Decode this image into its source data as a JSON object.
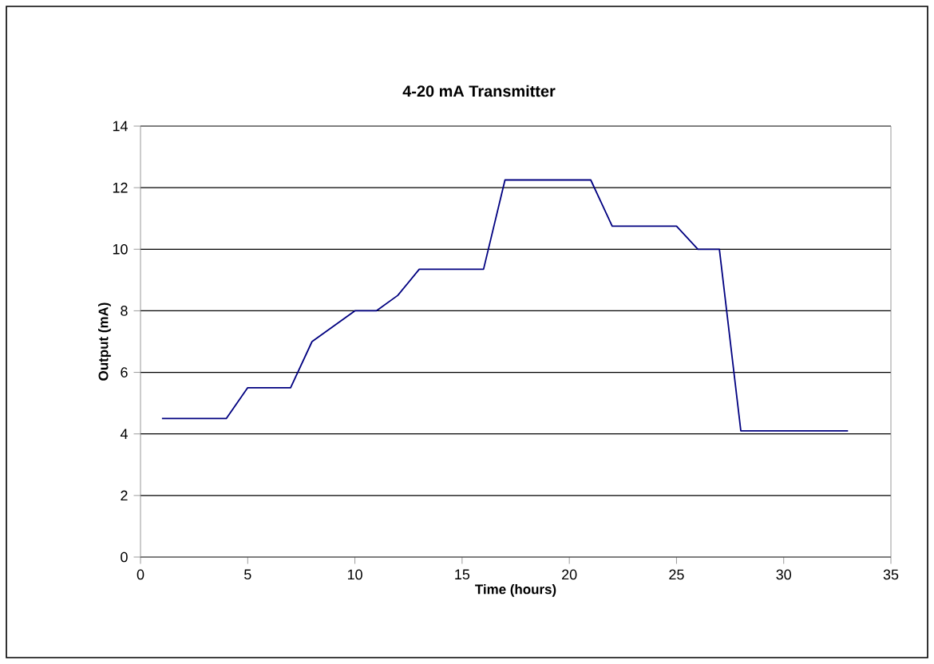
{
  "chart_data": {
    "type": "line",
    "title": "4-20 mA Transmitter",
    "xlabel": "Time (hours)",
    "ylabel": "Output (mA)",
    "x": [
      1,
      4,
      5,
      7,
      8,
      10,
      11,
      12,
      13,
      16,
      17,
      21,
      22,
      25,
      26,
      27,
      28,
      33
    ],
    "series": [
      {
        "color": "#000080",
        "values": [
          4.5,
          4.5,
          5.5,
          5.5,
          7,
          8,
          8,
          8.5,
          9.35,
          9.35,
          12.25,
          12.25,
          10.75,
          10.75,
          10,
          10,
          4.1,
          4.1
        ]
      }
    ],
    "xlim": [
      0,
      35
    ],
    "xticks": [
      0,
      5,
      10,
      15,
      20,
      25,
      30,
      35
    ],
    "ylim": [
      0,
      14
    ],
    "yticks": [
      0,
      2,
      4,
      6,
      8,
      10,
      12,
      14
    ],
    "grid": "y",
    "marker": "none",
    "line_style": "solid"
  }
}
